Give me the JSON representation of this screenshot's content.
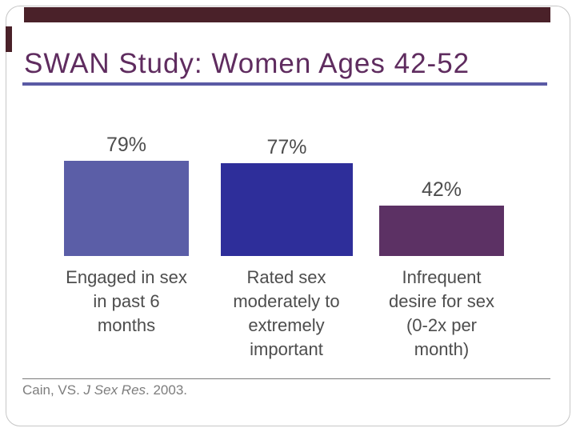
{
  "header": {
    "title": "SWAN Study: Women Ages 42-52"
  },
  "chart_data": {
    "type": "bar",
    "title": "SWAN Study: Women Ages 42-52",
    "categories": [
      "Engaged in sex in past 6 months",
      "Rated sex moderately to extremely important",
      "Infrequent desire for sex (0-2x per month)"
    ],
    "values": [
      79,
      77,
      42
    ],
    "value_labels": [
      "79%",
      "77%",
      "42%"
    ],
    "label_lines": [
      [
        "Engaged in sex",
        "in past 6",
        "months"
      ],
      [
        "Rated sex",
        "moderately to",
        "extremely",
        "important"
      ],
      [
        "Infrequent",
        "desire for sex",
        "(0-2x per",
        "month)"
      ]
    ],
    "bar_colors": [
      "#5b5ea7",
      "#2e2e9a",
      "#5c3164"
    ],
    "unit": "%",
    "ylim": [
      0,
      100
    ],
    "xlabel": "",
    "ylabel": "",
    "grid": false,
    "axes_shown": false,
    "legend": "none"
  },
  "citation": {
    "prefix": "Cain, VS. ",
    "journal": "J Sex Res",
    "suffix": ". 2003."
  },
  "colors": {
    "title-purple": "#5f2c5f",
    "underline-blue": "#5a5aa5",
    "accent-maroon": "#4a2129",
    "frame-gray": "#c6c6c6",
    "label-gray": "#4d4d4d",
    "citation-gray": "#7d7d7d"
  }
}
